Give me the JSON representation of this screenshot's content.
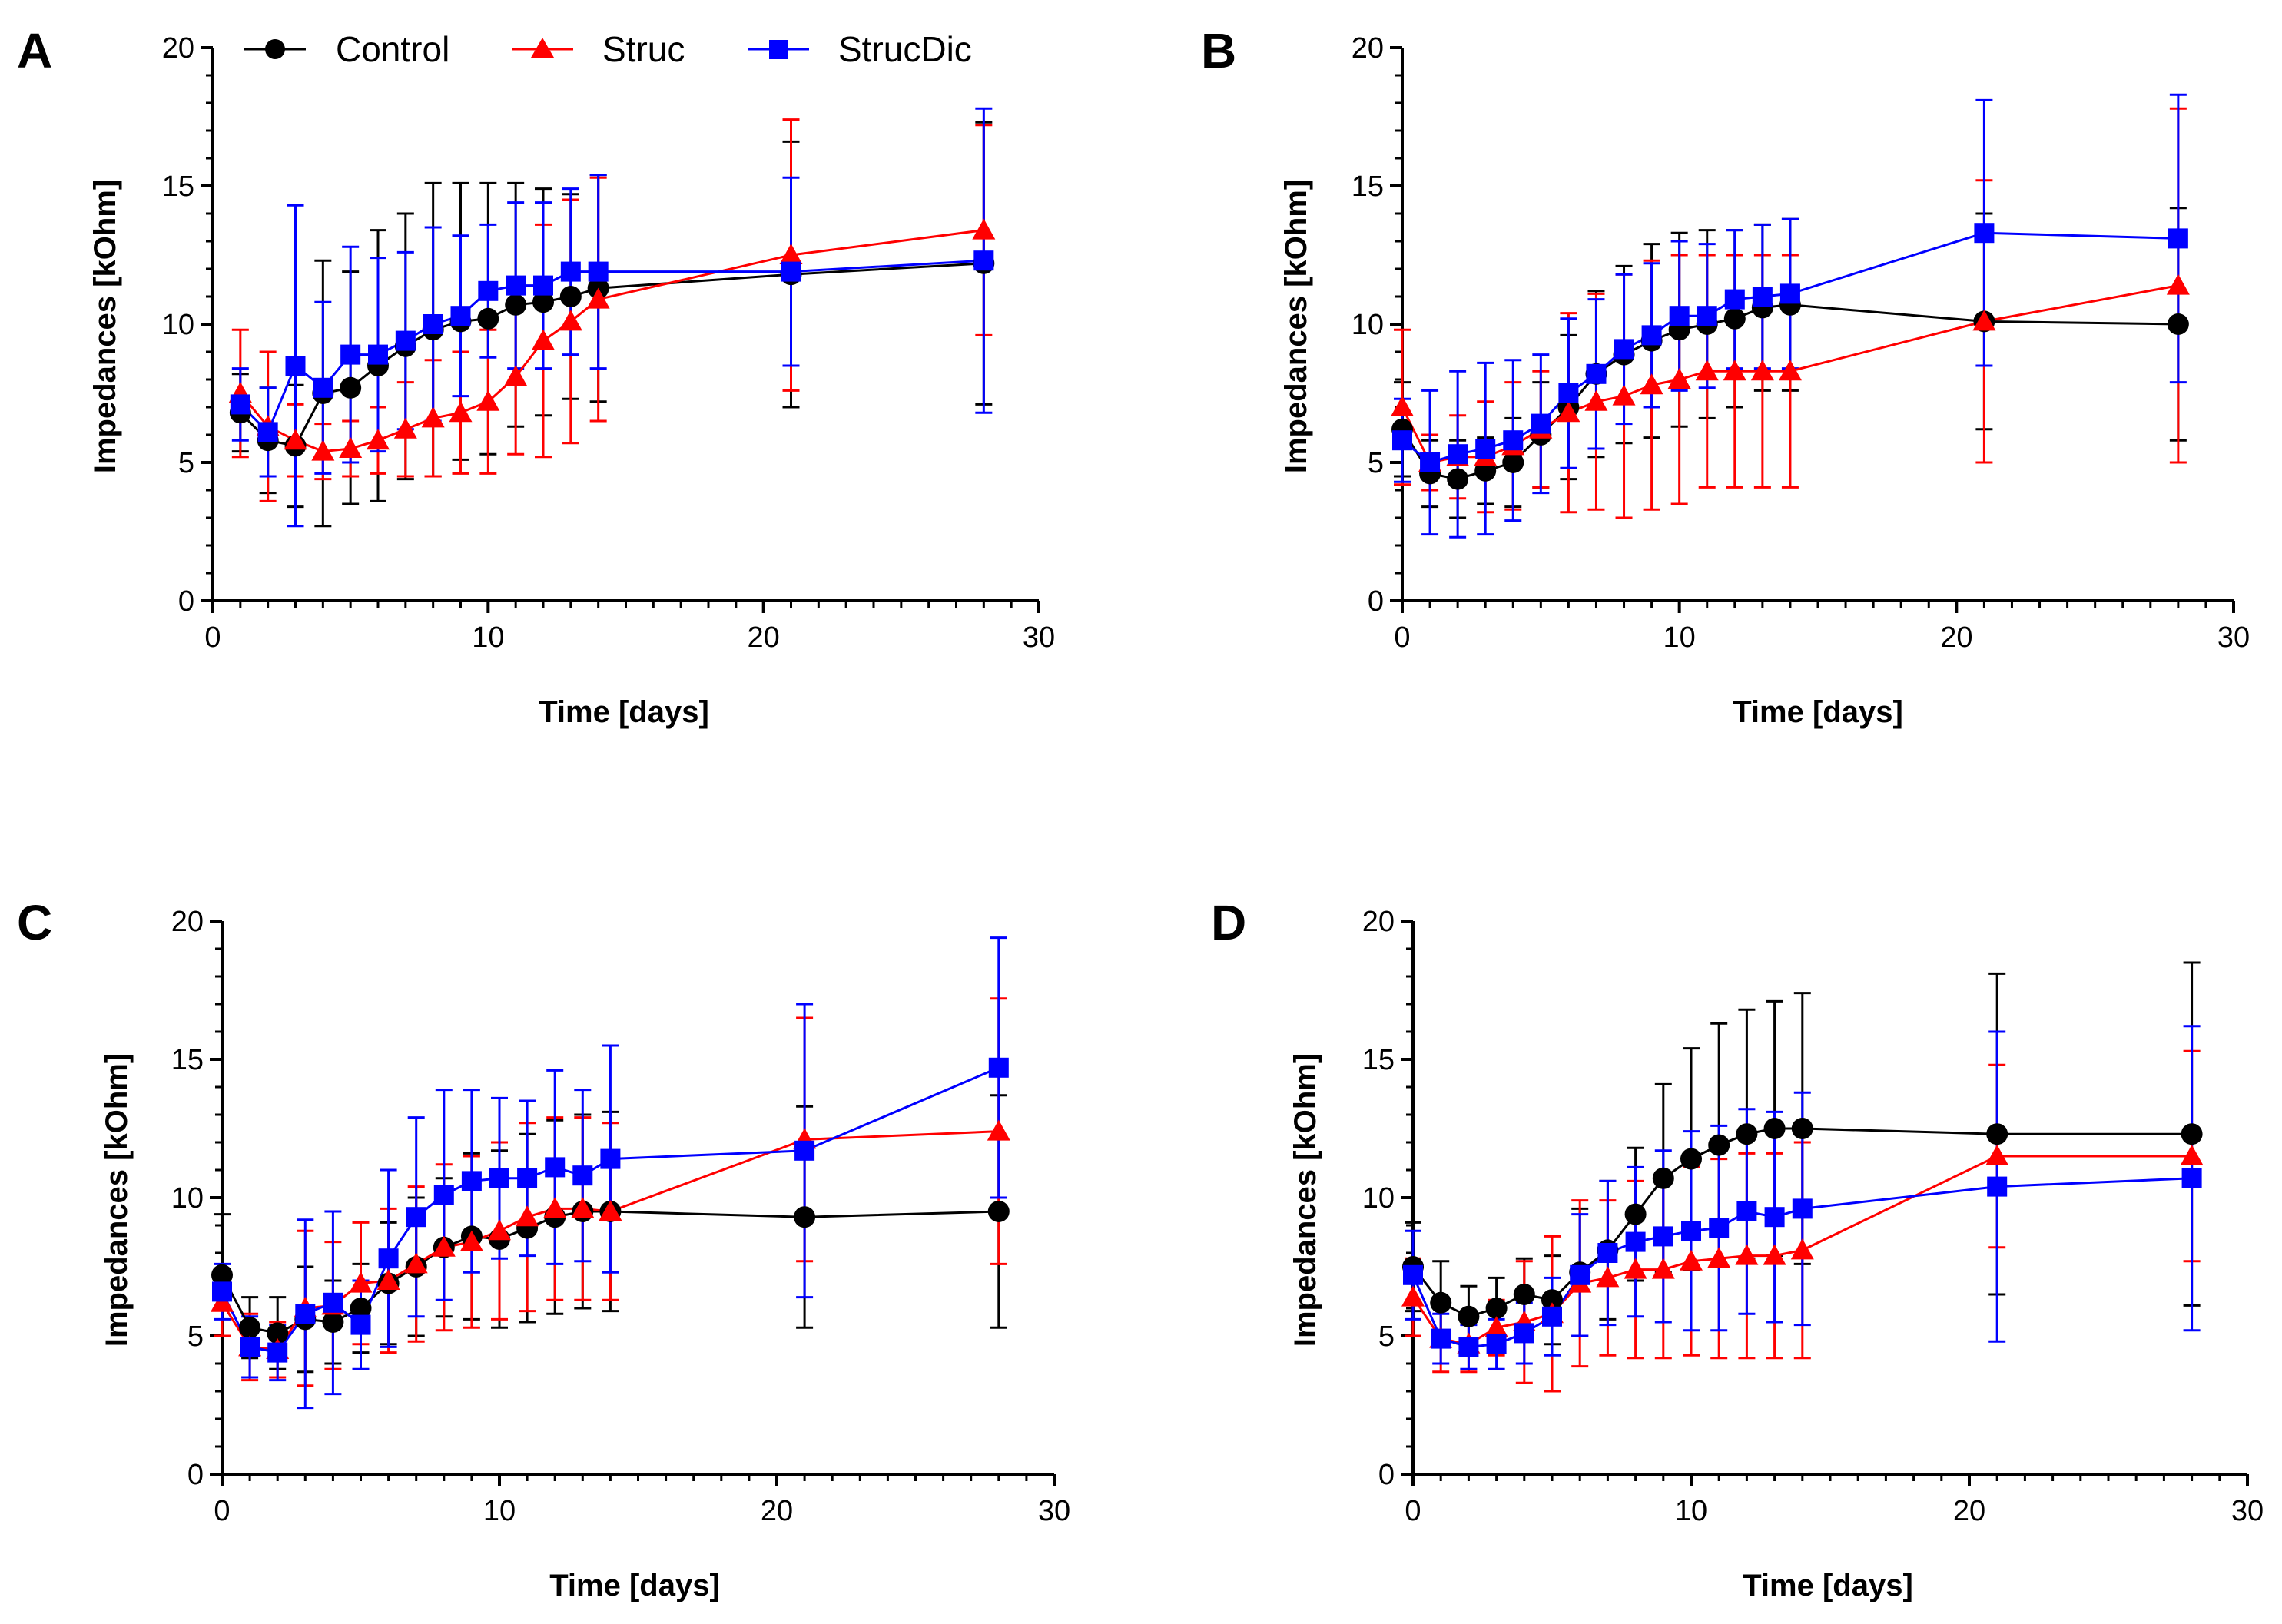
{
  "figure": {
    "legend": {
      "items": [
        {
          "label": "Control",
          "color": "#000000",
          "marker": "circle"
        },
        {
          "label": "Struc",
          "color": "#ff0000",
          "marker": "triangle"
        },
        {
          "label": "StrucDic",
          "color": "#0000ff",
          "marker": "square"
        }
      ]
    }
  },
  "chart_data": [
    {
      "panel": "A",
      "type": "line",
      "xlabel": "Time [days]",
      "ylabel": "Impedances [kOhm]",
      "xlim": [
        0,
        30
      ],
      "ylim": [
        0,
        20
      ],
      "xticks": [
        0,
        10,
        20,
        30
      ],
      "yticks": [
        0,
        5,
        10,
        15,
        20
      ],
      "series": [
        {
          "name": "Control",
          "color": "#000000",
          "marker": "circle",
          "x": [
            1,
            2,
            3,
            4,
            5,
            6,
            7,
            8,
            9,
            10,
            11,
            12,
            13,
            14,
            21,
            28
          ],
          "values": [
            6.8,
            5.8,
            5.6,
            7.5,
            7.7,
            8.5,
            9.2,
            9.8,
            10.1,
            10.2,
            10.7,
            10.8,
            11.0,
            11.3,
            11.8,
            12.2
          ],
          "errors": [
            1.4,
            1.9,
            2.2,
            4.8,
            4.2,
            4.9,
            4.8,
            5.3,
            5.0,
            4.9,
            4.4,
            4.1,
            3.7,
            4.1,
            4.8,
            5.1
          ]
        },
        {
          "name": "Struc",
          "color": "#ff0000",
          "marker": "triangle",
          "x": [
            1,
            2,
            3,
            4,
            5,
            6,
            7,
            8,
            9,
            10,
            11,
            12,
            13,
            14,
            21,
            28
          ],
          "values": [
            7.5,
            6.3,
            5.8,
            5.4,
            5.5,
            5.8,
            6.2,
            6.6,
            6.8,
            7.2,
            8.1,
            9.4,
            10.1,
            10.9,
            12.5,
            13.4
          ],
          "errors": [
            2.3,
            2.7,
            1.3,
            1.0,
            1.0,
            1.2,
            1.7,
            2.1,
            2.2,
            2.6,
            2.8,
            4.2,
            4.4,
            4.4,
            4.9,
            3.8
          ]
        },
        {
          "name": "StrucDic",
          "color": "#0000ff",
          "marker": "square",
          "x": [
            1,
            2,
            3,
            4,
            5,
            6,
            7,
            8,
            9,
            10,
            11,
            12,
            13,
            14,
            21,
            28
          ],
          "values": [
            7.1,
            6.1,
            8.5,
            7.7,
            8.9,
            8.9,
            9.4,
            10.0,
            10.3,
            11.2,
            11.4,
            11.4,
            11.9,
            11.9,
            11.9,
            12.3
          ],
          "errors": [
            1.3,
            1.6,
            5.8,
            3.1,
            3.9,
            3.5,
            3.2,
            3.5,
            2.9,
            2.4,
            3.0,
            3.0,
            3.0,
            3.5,
            3.4,
            5.5
          ]
        }
      ]
    },
    {
      "panel": "B",
      "type": "line",
      "xlabel": "Time [days]",
      "ylabel": "Impedances [kOhm]",
      "xlim": [
        0,
        30
      ],
      "ylim": [
        0,
        20
      ],
      "xticks": [
        0,
        10,
        20,
        30
      ],
      "yticks": [
        0,
        5,
        10,
        15,
        20
      ],
      "series": [
        {
          "name": "Control",
          "color": "#000000",
          "marker": "circle",
          "x": [
            0,
            1,
            2,
            3,
            4,
            5,
            6,
            7,
            8,
            9,
            10,
            11,
            12,
            13,
            14,
            21,
            28
          ],
          "values": [
            6.2,
            4.6,
            4.4,
            4.7,
            5.0,
            6.0,
            7.0,
            8.2,
            8.9,
            9.4,
            9.8,
            10.0,
            10.2,
            10.6,
            10.7,
            10.1,
            10.0
          ],
          "errors": [
            1.7,
            1.2,
            1.4,
            1.2,
            1.6,
            1.9,
            2.6,
            3.0,
            3.2,
            3.5,
            3.5,
            3.4,
            3.2,
            3.0,
            3.1,
            3.9,
            4.2
          ]
        },
        {
          "name": "Struc",
          "color": "#ff0000",
          "marker": "triangle",
          "x": [
            0,
            1,
            2,
            3,
            4,
            5,
            6,
            7,
            8,
            9,
            10,
            11,
            12,
            13,
            14,
            21,
            28
          ],
          "values": [
            7.0,
            5.0,
            5.2,
            5.2,
            5.6,
            6.2,
            6.8,
            7.2,
            7.4,
            7.8,
            8.0,
            8.3,
            8.3,
            8.3,
            8.3,
            10.1,
            11.4
          ],
          "errors": [
            2.8,
            1.0,
            1.5,
            2.0,
            2.3,
            2.1,
            3.6,
            3.9,
            4.4,
            4.5,
            4.5,
            4.2,
            4.2,
            4.2,
            4.2,
            5.1,
            6.4
          ]
        },
        {
          "name": "StrucDic",
          "color": "#0000ff",
          "marker": "square",
          "x": [
            0,
            1,
            2,
            3,
            4,
            5,
            6,
            7,
            8,
            9,
            10,
            11,
            12,
            13,
            14,
            21,
            28
          ],
          "values": [
            5.8,
            5.0,
            5.3,
            5.5,
            5.8,
            6.4,
            7.5,
            8.2,
            9.1,
            9.6,
            10.3,
            10.3,
            10.9,
            11.0,
            11.1,
            13.3,
            13.1
          ],
          "errors": [
            1.5,
            2.6,
            3.0,
            3.1,
            2.9,
            2.5,
            2.7,
            2.7,
            2.7,
            2.6,
            2.7,
            2.6,
            2.5,
            2.6,
            2.7,
            4.8,
            5.2
          ]
        }
      ]
    },
    {
      "panel": "C",
      "type": "line",
      "xlabel": "Time [days]",
      "ylabel": "Impedances [kOhm]",
      "xlim": [
        0,
        30
      ],
      "ylim": [
        0,
        20
      ],
      "xticks": [
        0,
        10,
        20,
        30
      ],
      "yticks": [
        0,
        5,
        10,
        15,
        20
      ],
      "series": [
        {
          "name": "Control",
          "color": "#000000",
          "marker": "circle",
          "x": [
            0,
            1,
            2,
            3,
            4,
            5,
            6,
            7,
            8,
            9,
            10,
            11,
            12,
            13,
            14,
            21,
            28
          ],
          "values": [
            7.2,
            5.3,
            5.1,
            5.6,
            5.5,
            6.0,
            6.9,
            7.5,
            8.2,
            8.6,
            8.5,
            8.9,
            9.3,
            9.5,
            9.5,
            9.3,
            9.5
          ],
          "errors": [
            2.2,
            1.1,
            1.3,
            1.9,
            1.5,
            1.6,
            2.2,
            2.5,
            2.5,
            3.0,
            3.2,
            3.4,
            3.5,
            3.5,
            3.6,
            4.0,
            4.2
          ]
        },
        {
          "name": "Struc",
          "color": "#ff0000",
          "marker": "triangle",
          "x": [
            0,
            1,
            2,
            3,
            4,
            5,
            6,
            7,
            8,
            9,
            10,
            11,
            12,
            13,
            14,
            21,
            28
          ],
          "values": [
            6.2,
            4.6,
            4.5,
            6.0,
            6.1,
            6.9,
            7.0,
            7.6,
            8.2,
            8.4,
            8.8,
            9.3,
            9.6,
            9.6,
            9.5,
            12.1,
            12.4
          ],
          "errors": [
            1.2,
            1.2,
            1.0,
            2.8,
            2.3,
            2.2,
            2.6,
            2.8,
            3.0,
            3.1,
            3.2,
            3.4,
            3.3,
            3.3,
            3.2,
            4.4,
            4.8
          ]
        },
        {
          "name": "StrucDic",
          "color": "#0000ff",
          "marker": "square",
          "x": [
            0,
            1,
            2,
            3,
            4,
            5,
            6,
            7,
            8,
            9,
            10,
            11,
            12,
            13,
            14,
            21,
            28
          ],
          "values": [
            6.6,
            4.6,
            4.4,
            5.8,
            6.2,
            5.4,
            7.8,
            9.3,
            10.1,
            10.6,
            10.7,
            10.7,
            11.1,
            10.8,
            11.4,
            11.7,
            14.7
          ],
          "errors": [
            1.0,
            1.1,
            1.0,
            3.4,
            3.3,
            1.6,
            3.2,
            3.6,
            3.8,
            3.3,
            2.9,
            2.8,
            3.5,
            3.1,
            4.1,
            5.3,
            4.7
          ]
        }
      ]
    },
    {
      "panel": "D",
      "type": "line",
      "xlabel": "Time [days]",
      "ylabel": "Impedances [kOhm]",
      "xlim": [
        0,
        30
      ],
      "ylim": [
        0,
        20
      ],
      "xticks": [
        0,
        10,
        20,
        30
      ],
      "yticks": [
        0,
        5,
        10,
        15,
        20
      ],
      "series": [
        {
          "name": "Control",
          "color": "#000000",
          "marker": "circle",
          "x": [
            0,
            1,
            2,
            3,
            4,
            5,
            6,
            7,
            8,
            9,
            10,
            11,
            12,
            13,
            14,
            21,
            28
          ],
          "values": [
            7.5,
            6.2,
            5.7,
            6.0,
            6.5,
            6.3,
            7.3,
            8.1,
            9.4,
            10.7,
            11.4,
            11.9,
            12.3,
            12.5,
            12.5,
            12.3,
            12.3
          ],
          "errors": [
            1.6,
            1.5,
            1.1,
            1.1,
            1.3,
            1.6,
            2.3,
            2.5,
            2.4,
            3.4,
            4.0,
            4.4,
            4.5,
            4.6,
            4.9,
            5.8,
            6.2
          ]
        },
        {
          "name": "Struc",
          "color": "#ff0000",
          "marker": "triangle",
          "x": [
            0,
            1,
            2,
            3,
            4,
            5,
            6,
            7,
            8,
            9,
            10,
            11,
            12,
            13,
            14,
            21,
            28
          ],
          "values": [
            6.4,
            4.9,
            4.7,
            5.3,
            5.5,
            5.8,
            6.9,
            7.1,
            7.4,
            7.4,
            7.7,
            7.8,
            7.9,
            7.9,
            8.1,
            11.5,
            11.5
          ],
          "errors": [
            1.4,
            1.2,
            1.0,
            1.0,
            2.2,
            2.8,
            3.0,
            2.8,
            3.2,
            3.2,
            3.4,
            3.6,
            3.7,
            3.7,
            3.9,
            3.3,
            3.8
          ]
        },
        {
          "name": "StrucDic",
          "color": "#0000ff",
          "marker": "square",
          "x": [
            0,
            1,
            2,
            3,
            4,
            5,
            6,
            7,
            8,
            9,
            10,
            11,
            12,
            13,
            14,
            21,
            28
          ],
          "values": [
            7.2,
            4.9,
            4.6,
            4.7,
            5.1,
            5.7,
            7.2,
            8.0,
            8.4,
            8.6,
            8.8,
            8.9,
            9.5,
            9.3,
            9.6,
            10.4,
            10.7
          ],
          "errors": [
            1.6,
            0.9,
            0.8,
            0.9,
            1.1,
            1.4,
            2.2,
            2.6,
            2.7,
            3.1,
            3.6,
            3.7,
            3.7,
            3.8,
            4.2,
            5.6,
            5.5
          ]
        }
      ]
    }
  ]
}
